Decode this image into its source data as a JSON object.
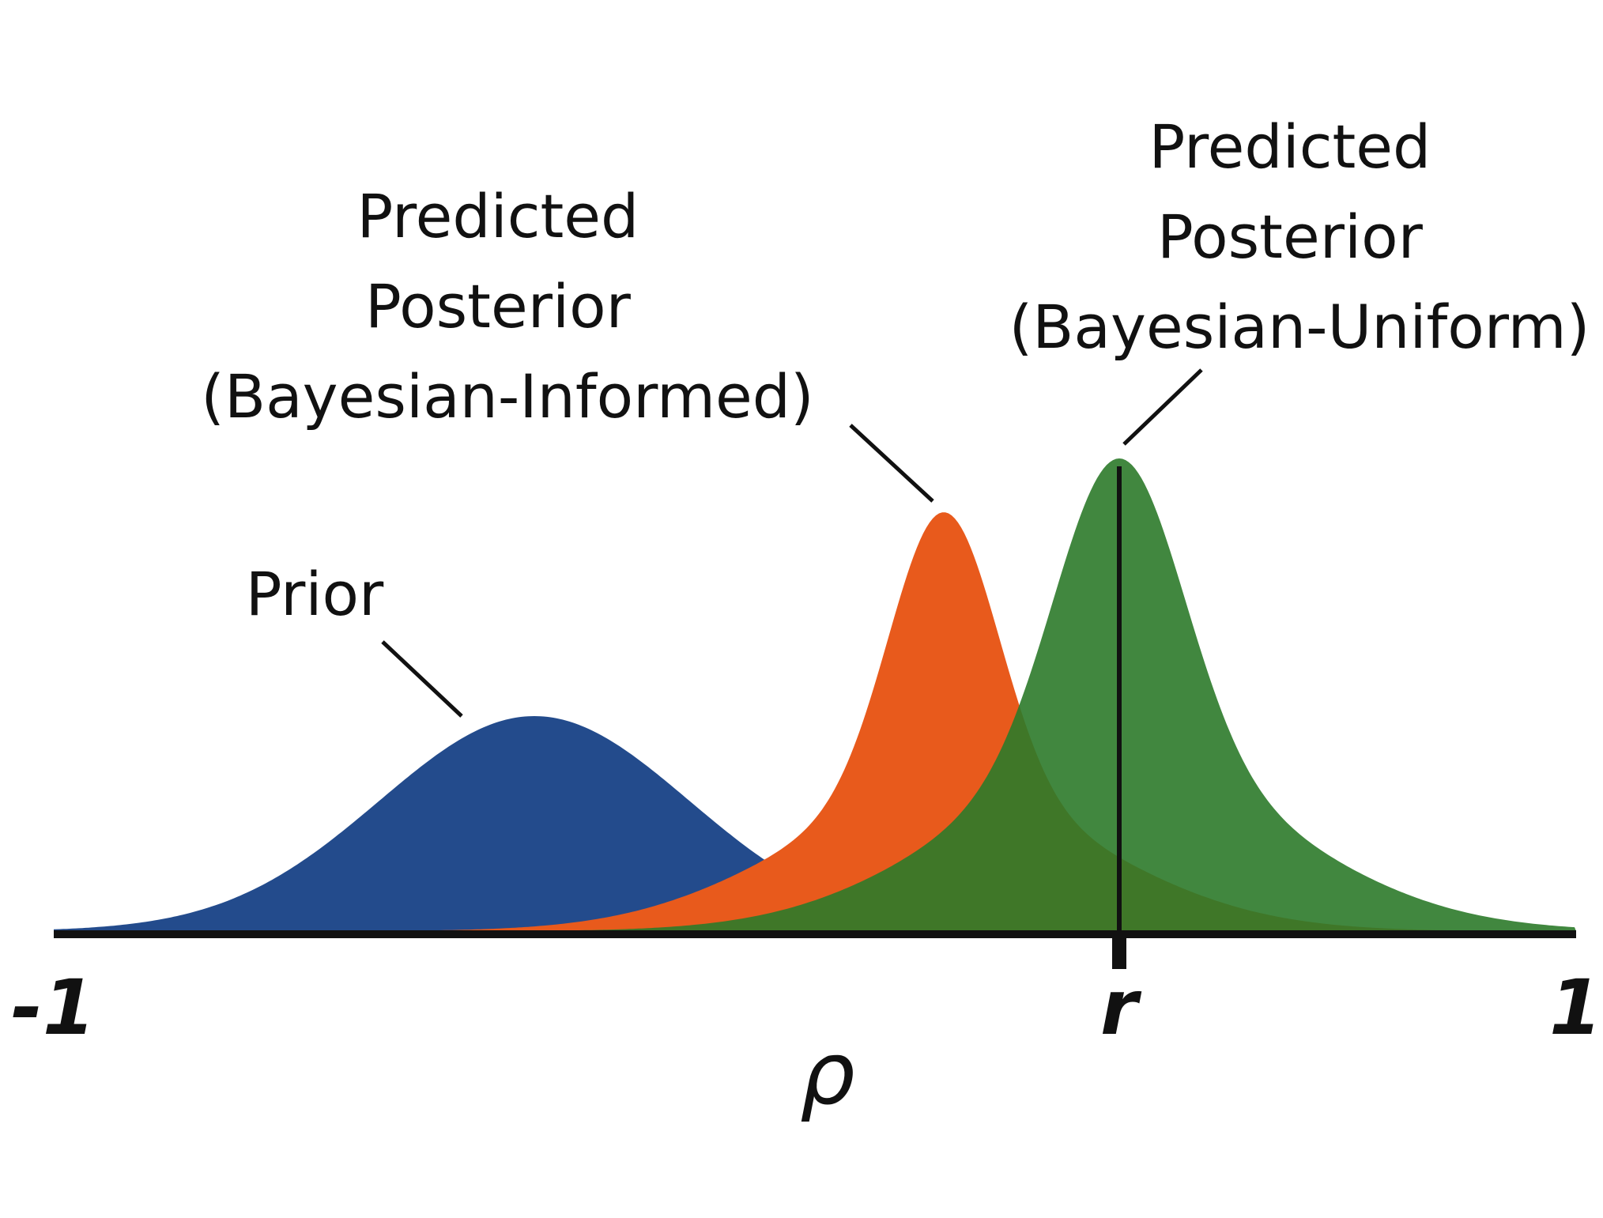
{
  "axis": {
    "min_label": "-1",
    "max_label": "1",
    "marker_label": "r",
    "variable_label": "ρ"
  },
  "curves": {
    "prior": {
      "label_lines": [
        "Prior"
      ],
      "color": "#234B8C"
    },
    "informed": {
      "label_lines": [
        "Predicted",
        "Posterior",
        "(Bayesian-Informed)"
      ],
      "color": "#E85A1C"
    },
    "uniform": {
      "label_lines": [
        "Predicted",
        "Posterior",
        "(Bayesian-Uniform)"
      ],
      "color": "#2C7A2A"
    }
  },
  "colors": {
    "axis": "#111111",
    "background": "#FFFFFF"
  }
}
